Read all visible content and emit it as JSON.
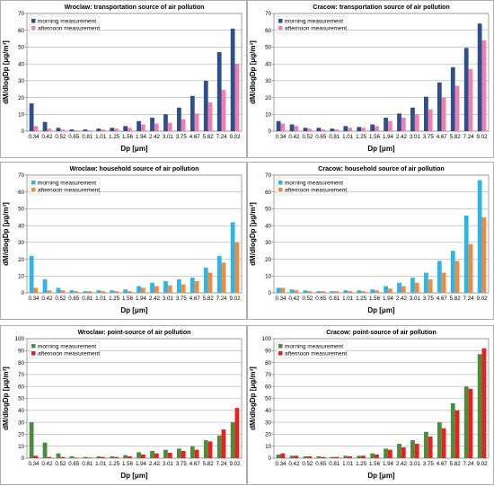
{
  "chart_data": [
    {
      "type": "bar",
      "title": "Wroclaw: transportation source of air pollution",
      "xlabel": "Dp [μm]",
      "ylabel": "dM/dlogDp [μg/m³]",
      "ylim": [
        0,
        70
      ],
      "yticks": [
        0,
        10,
        20,
        30,
        40,
        50,
        60,
        70
      ],
      "grid": "horizontal",
      "legend_position": "top-left",
      "categories": [
        "0.34",
        "0.42",
        "0.52",
        "0.65",
        "0.81",
        "1.01",
        "1.25",
        "1.56",
        "1.94",
        "2.42",
        "3.01",
        "3.75",
        "4.67",
        "5.82",
        "7.24",
        "9.02"
      ],
      "series": [
        {
          "name": "morning measurement",
          "color": "#2E4F8C",
          "values": [
            16.5,
            5.5,
            2,
            1,
            1,
            1.5,
            2,
            3,
            6,
            8,
            10,
            14,
            21,
            30,
            47,
            61
          ]
        },
        {
          "name": "afternoon measurement",
          "color": "#F07FB0",
          "values": [
            3,
            1.5,
            1,
            0.5,
            0.5,
            1,
            1.5,
            2,
            4,
            4.5,
            5,
            7,
            10.5,
            17,
            24.5,
            40
          ]
        }
      ]
    },
    {
      "type": "bar",
      "title": "Cracow: transportation source of air pollution",
      "xlabel": "Dp [μm]",
      "ylabel": "dM/dlogDp [μg/m³]",
      "ylim": [
        0,
        70
      ],
      "yticks": [
        0,
        10,
        20,
        30,
        40,
        50,
        60,
        70
      ],
      "grid": "horizontal",
      "legend_position": "top-left",
      "categories": [
        "0.34",
        "0.42",
        "0.52",
        "0.65",
        "0.81",
        "1.01",
        "1.25",
        "1.56",
        "1.94",
        "2.42",
        "3.01",
        "3.75",
        "4.67",
        "5.82",
        "7.24",
        "9.02"
      ],
      "series": [
        {
          "name": "morning measurement",
          "color": "#2E4F8C",
          "values": [
            6,
            4,
            2,
            2,
            1.5,
            3,
            2.5,
            4,
            8,
            10.5,
            14,
            20.5,
            29,
            38,
            49.5,
            64
          ]
        },
        {
          "name": "afternoon measurement",
          "color": "#F07FB0",
          "values": [
            4.5,
            3,
            1.5,
            1,
            1,
            2,
            2,
            3,
            6,
            8,
            10,
            13,
            20,
            27,
            37,
            54
          ]
        }
      ]
    },
    {
      "type": "bar",
      "title": "Wroclaw: household source of air pollution",
      "xlabel": "Dp [μm]",
      "ylabel": "dM/dlogDp [μg/m³]",
      "ylim": [
        0,
        70
      ],
      "yticks": [
        0,
        10,
        20,
        30,
        40,
        50,
        60,
        70
      ],
      "grid": "horizontal",
      "legend_position": "top-left",
      "categories": [
        "0.34",
        "0.42",
        "0.52",
        "0.65",
        "0.81",
        "1.01",
        "1.25",
        "1.56",
        "1.94",
        "2.42",
        "3.01",
        "3.75",
        "4.67",
        "5.82",
        "7.24",
        "9.02"
      ],
      "series": [
        {
          "name": "morning measurement",
          "color": "#2EB5E8",
          "values": [
            22,
            8,
            3,
            1.5,
            1,
            1.5,
            1.5,
            2,
            4,
            6,
            7,
            8,
            9,
            15,
            22,
            42
          ]
        },
        {
          "name": "afternoon measurement",
          "color": "#F08A3C",
          "values": [
            3,
            1.5,
            1.5,
            1,
            1,
            1,
            1,
            1,
            3,
            4,
            4.5,
            5,
            7,
            12,
            18,
            30
          ]
        }
      ]
    },
    {
      "type": "bar",
      "title": "Cracow: household source of air pollution",
      "xlabel": "Dp [μm]",
      "ylabel": "dM/dlogDp [μg/m³]",
      "ylim": [
        0,
        70
      ],
      "yticks": [
        0,
        10,
        20,
        30,
        40,
        50,
        60,
        70
      ],
      "grid": "horizontal",
      "legend_position": "top-left",
      "categories": [
        "0.34",
        "0.42",
        "0.52",
        "0.65",
        "0.81",
        "1.01",
        "1.25",
        "1.56",
        "1.94",
        "2.42",
        "3.01",
        "3.75",
        "4.67",
        "5.82",
        "7.24",
        "9.02"
      ],
      "series": [
        {
          "name": "morning measurement",
          "color": "#2EB5E8",
          "values": [
            3,
            2,
            1.5,
            1,
            1,
            1.5,
            1.5,
            2,
            4,
            6,
            9,
            12,
            19,
            25,
            46,
            67
          ]
        },
        {
          "name": "afternoon measurement",
          "color": "#F08A3C",
          "values": [
            3,
            1.5,
            1,
            1,
            1,
            1,
            1,
            1.5,
            2.5,
            4,
            6,
            8,
            12,
            19,
            29,
            45
          ]
        }
      ]
    },
    {
      "type": "bar",
      "title": "Wroclaw: point-source of air pollution",
      "xlabel": "Dp [μm]",
      "ylabel": "dM/dlogDp [μg/m³]",
      "ylim": [
        0,
        100
      ],
      "yticks": [
        0,
        10,
        20,
        30,
        40,
        50,
        60,
        70,
        80,
        90,
        100
      ],
      "grid": "horizontal",
      "legend_position": "top-left",
      "categories": [
        "0.34",
        "0.42",
        "0.52",
        "0.65",
        "0.81",
        "1.01",
        "1.25",
        "1.56",
        "1.94",
        "2.42",
        "3.01",
        "3.75",
        "4.67",
        "5.82",
        "7.24",
        "9.02"
      ],
      "series": [
        {
          "name": "morning measurement",
          "color": "#4D8C3C",
          "values": [
            30,
            13,
            4,
            1.5,
            1,
            1.5,
            1.5,
            2.5,
            5,
            6,
            7,
            8,
            10,
            15,
            19,
            30
          ]
        },
        {
          "name": "afternoon measurement",
          "color": "#E82020",
          "values": [
            2,
            1,
            1,
            0.5,
            0.5,
            1,
            1,
            1.5,
            3,
            4,
            4.5,
            6,
            7,
            14,
            24,
            42
          ]
        }
      ]
    },
    {
      "type": "bar",
      "title": "Cracow: point-source of air pollution",
      "xlabel": "Dp [μm]",
      "ylabel": "dM/dlogDp [μg/m³]",
      "ylim": [
        0,
        100
      ],
      "yticks": [
        0,
        10,
        20,
        30,
        40,
        50,
        60,
        70,
        80,
        90,
        100
      ],
      "grid": "horizontal",
      "legend_position": "top-left",
      "categories": [
        "0.34",
        "0.42",
        "0.52",
        "0.65",
        "0.81",
        "1.01",
        "1.25",
        "1.56",
        "1.94",
        "2.42",
        "3.01",
        "3.75",
        "4.67",
        "5.82",
        "7.24",
        "9.02"
      ],
      "series": [
        {
          "name": "morning measurement",
          "color": "#4D8C3C",
          "values": [
            3,
            2,
            1.5,
            1.5,
            1,
            2,
            2,
            4,
            8,
            12,
            15,
            22,
            30,
            46,
            60,
            87
          ]
        },
        {
          "name": "afternoon measurement",
          "color": "#E82020",
          "values": [
            4,
            2,
            1.5,
            1,
            1,
            1.5,
            2,
            3,
            7,
            9,
            12,
            18,
            25,
            40,
            58,
            92
          ]
        }
      ]
    }
  ]
}
